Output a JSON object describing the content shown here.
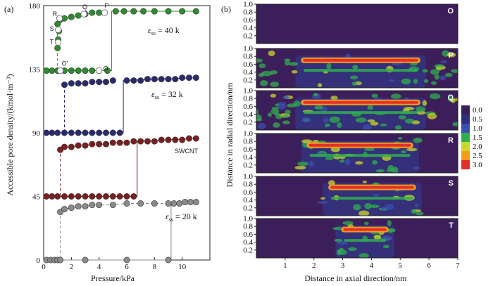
{
  "panel_labels": {
    "a": "(a)",
    "b": "(b)"
  },
  "chart_data": [
    {
      "type": "scatter",
      "xlabel": "Pressure/kPa",
      "ylabel": "Accessible pore density/(kmol·m⁻³)",
      "xlim": [
        0,
        12
      ],
      "ylim": [
        0,
        180
      ],
      "xticks": [
        "0",
        "2",
        "4",
        "6",
        "8",
        "10"
      ],
      "yticks": [
        "0",
        "45",
        "90",
        "135",
        "180"
      ],
      "curve_labels": [
        {
          "text": "εss = 40 k",
          "sym": "ε",
          "sub": "ss",
          "rest": " = 40 k"
        },
        {
          "text": "εss = 32 k",
          "sym": "ε",
          "sub": "ss",
          "rest": " = 32 k"
        },
        {
          "text": "SWCNT"
        },
        {
          "text": "εss = 20 k",
          "sym": "ε",
          "sub": "ss",
          "rest": " = 20 k"
        }
      ],
      "point_labels": [
        "R",
        "Q",
        "P",
        "S",
        "T",
        "O'",
        "O"
      ],
      "series": [
        {
          "color": "#2e8b2e",
          "adsorption": {
            "x": [
              0.2,
              0.6,
              1.0,
              1.2,
              1.5,
              2.0,
              2.5,
              3.0,
              3.5,
              4.0,
              4.6
            ],
            "y": [
              134,
              134,
              134,
              134,
              134,
              134,
              134,
              134,
              134,
              134,
              134
            ]
          },
          "adsorption_after": {
            "x": [
              5.2,
              5.8,
              6.5,
              7.2,
              8.0,
              9.0,
              10.0,
              11.0
            ],
            "y": [
              176,
              176,
              176,
              176,
              176,
              176,
              176,
              176
            ]
          },
          "desorption": {
            "x": [
              1.0,
              1.2,
              1.5,
              2.0,
              2.5,
              3.0,
              3.5,
              4.0
            ],
            "y": [
              167,
              170,
              171,
              172,
              173,
              174,
              175,
              175
            ]
          },
          "desorption_drop": {
            "x": [
              1.0,
              1.05,
              1.1
            ],
            "y": [
              150,
              156,
              162
            ]
          }
        },
        {
          "color": "#2a2a6e",
          "adsorption": {
            "x": [
              0.2,
              0.6,
              1.0,
              1.5,
              2.0,
              2.5,
              3.0,
              3.5,
              4.0,
              4.5,
              5.0,
              5.5
            ],
            "y": [
              90,
              90,
              90,
              90,
              90,
              90,
              90,
              90,
              90,
              90,
              90,
              90
            ]
          },
          "adsorption_after": {
            "x": [
              6.0,
              6.5,
              7.0,
              7.5,
              8.0,
              8.5,
              9.0,
              9.5,
              10.0,
              10.5,
              11.0
            ],
            "y": [
              127,
              127,
              127,
              128,
              128,
              128,
              128,
              128,
              129,
              129,
              129
            ]
          },
          "desorption": {
            "x": [
              1.5,
              2.0,
              2.5,
              3.0,
              3.5,
              4.0,
              4.5,
              5.0
            ],
            "y": [
              124,
              125,
              125,
              125,
              126,
              126,
              126,
              127
            ]
          }
        },
        {
          "color": "#7b1e1e",
          "adsorption": {
            "x": [
              0.2,
              0.6,
              1.0,
              1.5,
              2.0,
              2.5,
              3.0,
              3.5,
              4.0,
              4.5,
              5.0,
              5.5,
              6.0,
              6.5
            ],
            "y": [
              45,
              45,
              45,
              45,
              45,
              45,
              45,
              45,
              45,
              45,
              45,
              45,
              45,
              45
            ]
          },
          "adsorption_after": {
            "x": [
              7.0,
              7.5,
              8.0,
              8.5,
              9.0,
              9.5,
              10.0,
              10.5,
              11.0
            ],
            "y": [
              84,
              84,
              84,
              85,
              85,
              85,
              85,
              86,
              86
            ]
          },
          "desorption": {
            "x": [
              1.2,
              1.5,
              2.0,
              2.5,
              3.0,
              3.5,
              4.0,
              4.5,
              5.0,
              5.5,
              6.0,
              6.5
            ],
            "y": [
              78,
              80,
              80,
              81,
              81,
              82,
              82,
              82,
              83,
              83,
              83,
              84
            ]
          }
        },
        {
          "color": "#8a8a8a",
          "adsorption": {
            "x": [
              0.2,
              0.5,
              0.8,
              1.0,
              1.2,
              3.0,
              6.0,
              9.0
            ],
            "y": [
              0,
              0,
              0,
              0,
              0,
              0,
              0,
              0
            ]
          },
          "adsorption_after": {
            "x": [
              9.4,
              9.8,
              10.2,
              10.6,
              11.0
            ],
            "y": [
              40,
              40,
              41,
              41,
              41
            ]
          },
          "desorption": {
            "x": [
              1.2,
              1.5,
              2.0,
              2.5,
              3.0,
              3.5,
              4.0,
              5.0,
              6.0,
              7.0,
              8.0,
              9.0
            ],
            "y": [
              34,
              36,
              37,
              38,
              38,
              39,
              39,
              39,
              40,
              40,
              40,
              40
            ]
          }
        }
      ]
    },
    {
      "type": "heatmap",
      "xlabel": "Distance in axial direction/nm",
      "ylabel": "Distance in radial direction/nm",
      "xlim": [
        0,
        7
      ],
      "ylim": [
        0,
        1.0
      ],
      "xticks": [
        "1",
        "2",
        "3",
        "4",
        "5",
        "6",
        "7"
      ],
      "yticks": [
        "0.2",
        "0.4",
        "0.6",
        "0.8",
        "1.0"
      ],
      "panels": [
        {
          "label": "O",
          "ring_y": null,
          "x_start": null,
          "x_end": null,
          "noise": 0.0
        },
        {
          "label": "P",
          "ring_y": 0.7,
          "x_start": 1.55,
          "x_end": 5.7,
          "noise": 0.55
        },
        {
          "label": "Q",
          "ring_y": 0.7,
          "x_start": 1.55,
          "x_end": 5.7,
          "noise": 0.9
        },
        {
          "label": "R",
          "ring_y": 0.7,
          "x_start": 1.75,
          "x_end": 5.45,
          "noise": 0.4
        },
        {
          "label": "S",
          "ring_y": 0.72,
          "x_start": 2.5,
          "x_end": 5.55,
          "noise": 0.25
        },
        {
          "label": "T",
          "ring_y": 0.72,
          "x_start": 2.95,
          "x_end": 4.6,
          "noise": 0.22
        }
      ],
      "colorbar": {
        "ticks": [
          "0.0",
          "0.5",
          "1.0",
          "1.5",
          "2.0",
          "2.5",
          "3.0"
        ],
        "colors": [
          "#3c1e5a",
          "#2f2f7f",
          "#3a4fb0",
          "#2fae4f",
          "#c9d72a",
          "#f29c1f",
          "#e4302a"
        ]
      },
      "background_color": "#3c1e5a"
    }
  ]
}
